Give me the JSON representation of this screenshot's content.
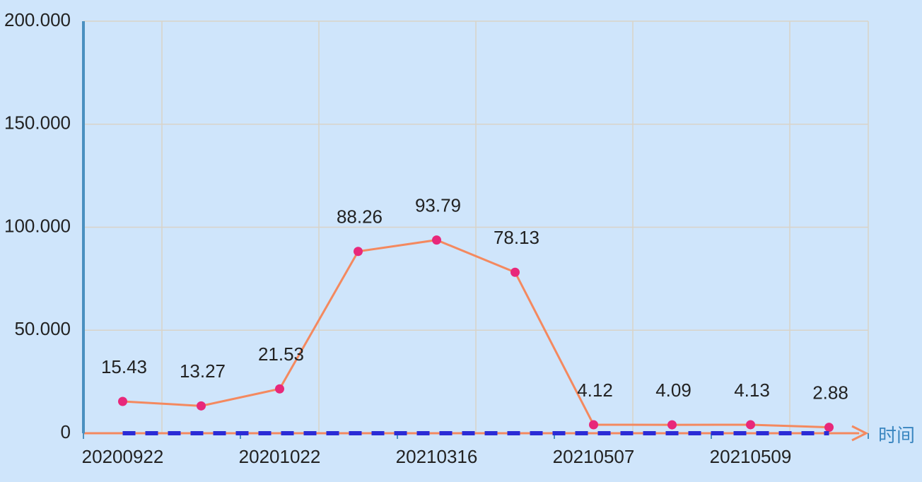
{
  "chart_data": {
    "type": "line",
    "x_label": "时间",
    "categories": [
      "20200922",
      null,
      "20201022",
      null,
      "20210316",
      null,
      "20210507",
      null,
      "20210509",
      null
    ],
    "series": [
      {
        "color": "#f4895f",
        "marker_color": "#e8287a",
        "values": [
          15.43,
          13.27,
          21.53,
          88.26,
          93.79,
          78.13,
          4.12,
          4.09,
          4.13,
          2.88
        ]
      },
      {
        "color": "#2b2bd6",
        "dashed": true,
        "values": [
          0,
          0,
          0,
          0,
          0,
          0,
          0,
          0,
          0,
          0
        ]
      }
    ],
    "ylim": [
      0,
      200
    ],
    "yticks": [
      0,
      {
        "value": 50,
        "label": "50.000"
      },
      {
        "value": 100,
        "label": "100.000"
      },
      {
        "value": 150,
        "label": "150.000"
      },
      {
        "value": 200,
        "label": "200.000"
      }
    ],
    "grid": true,
    "data_labels": true
  }
}
